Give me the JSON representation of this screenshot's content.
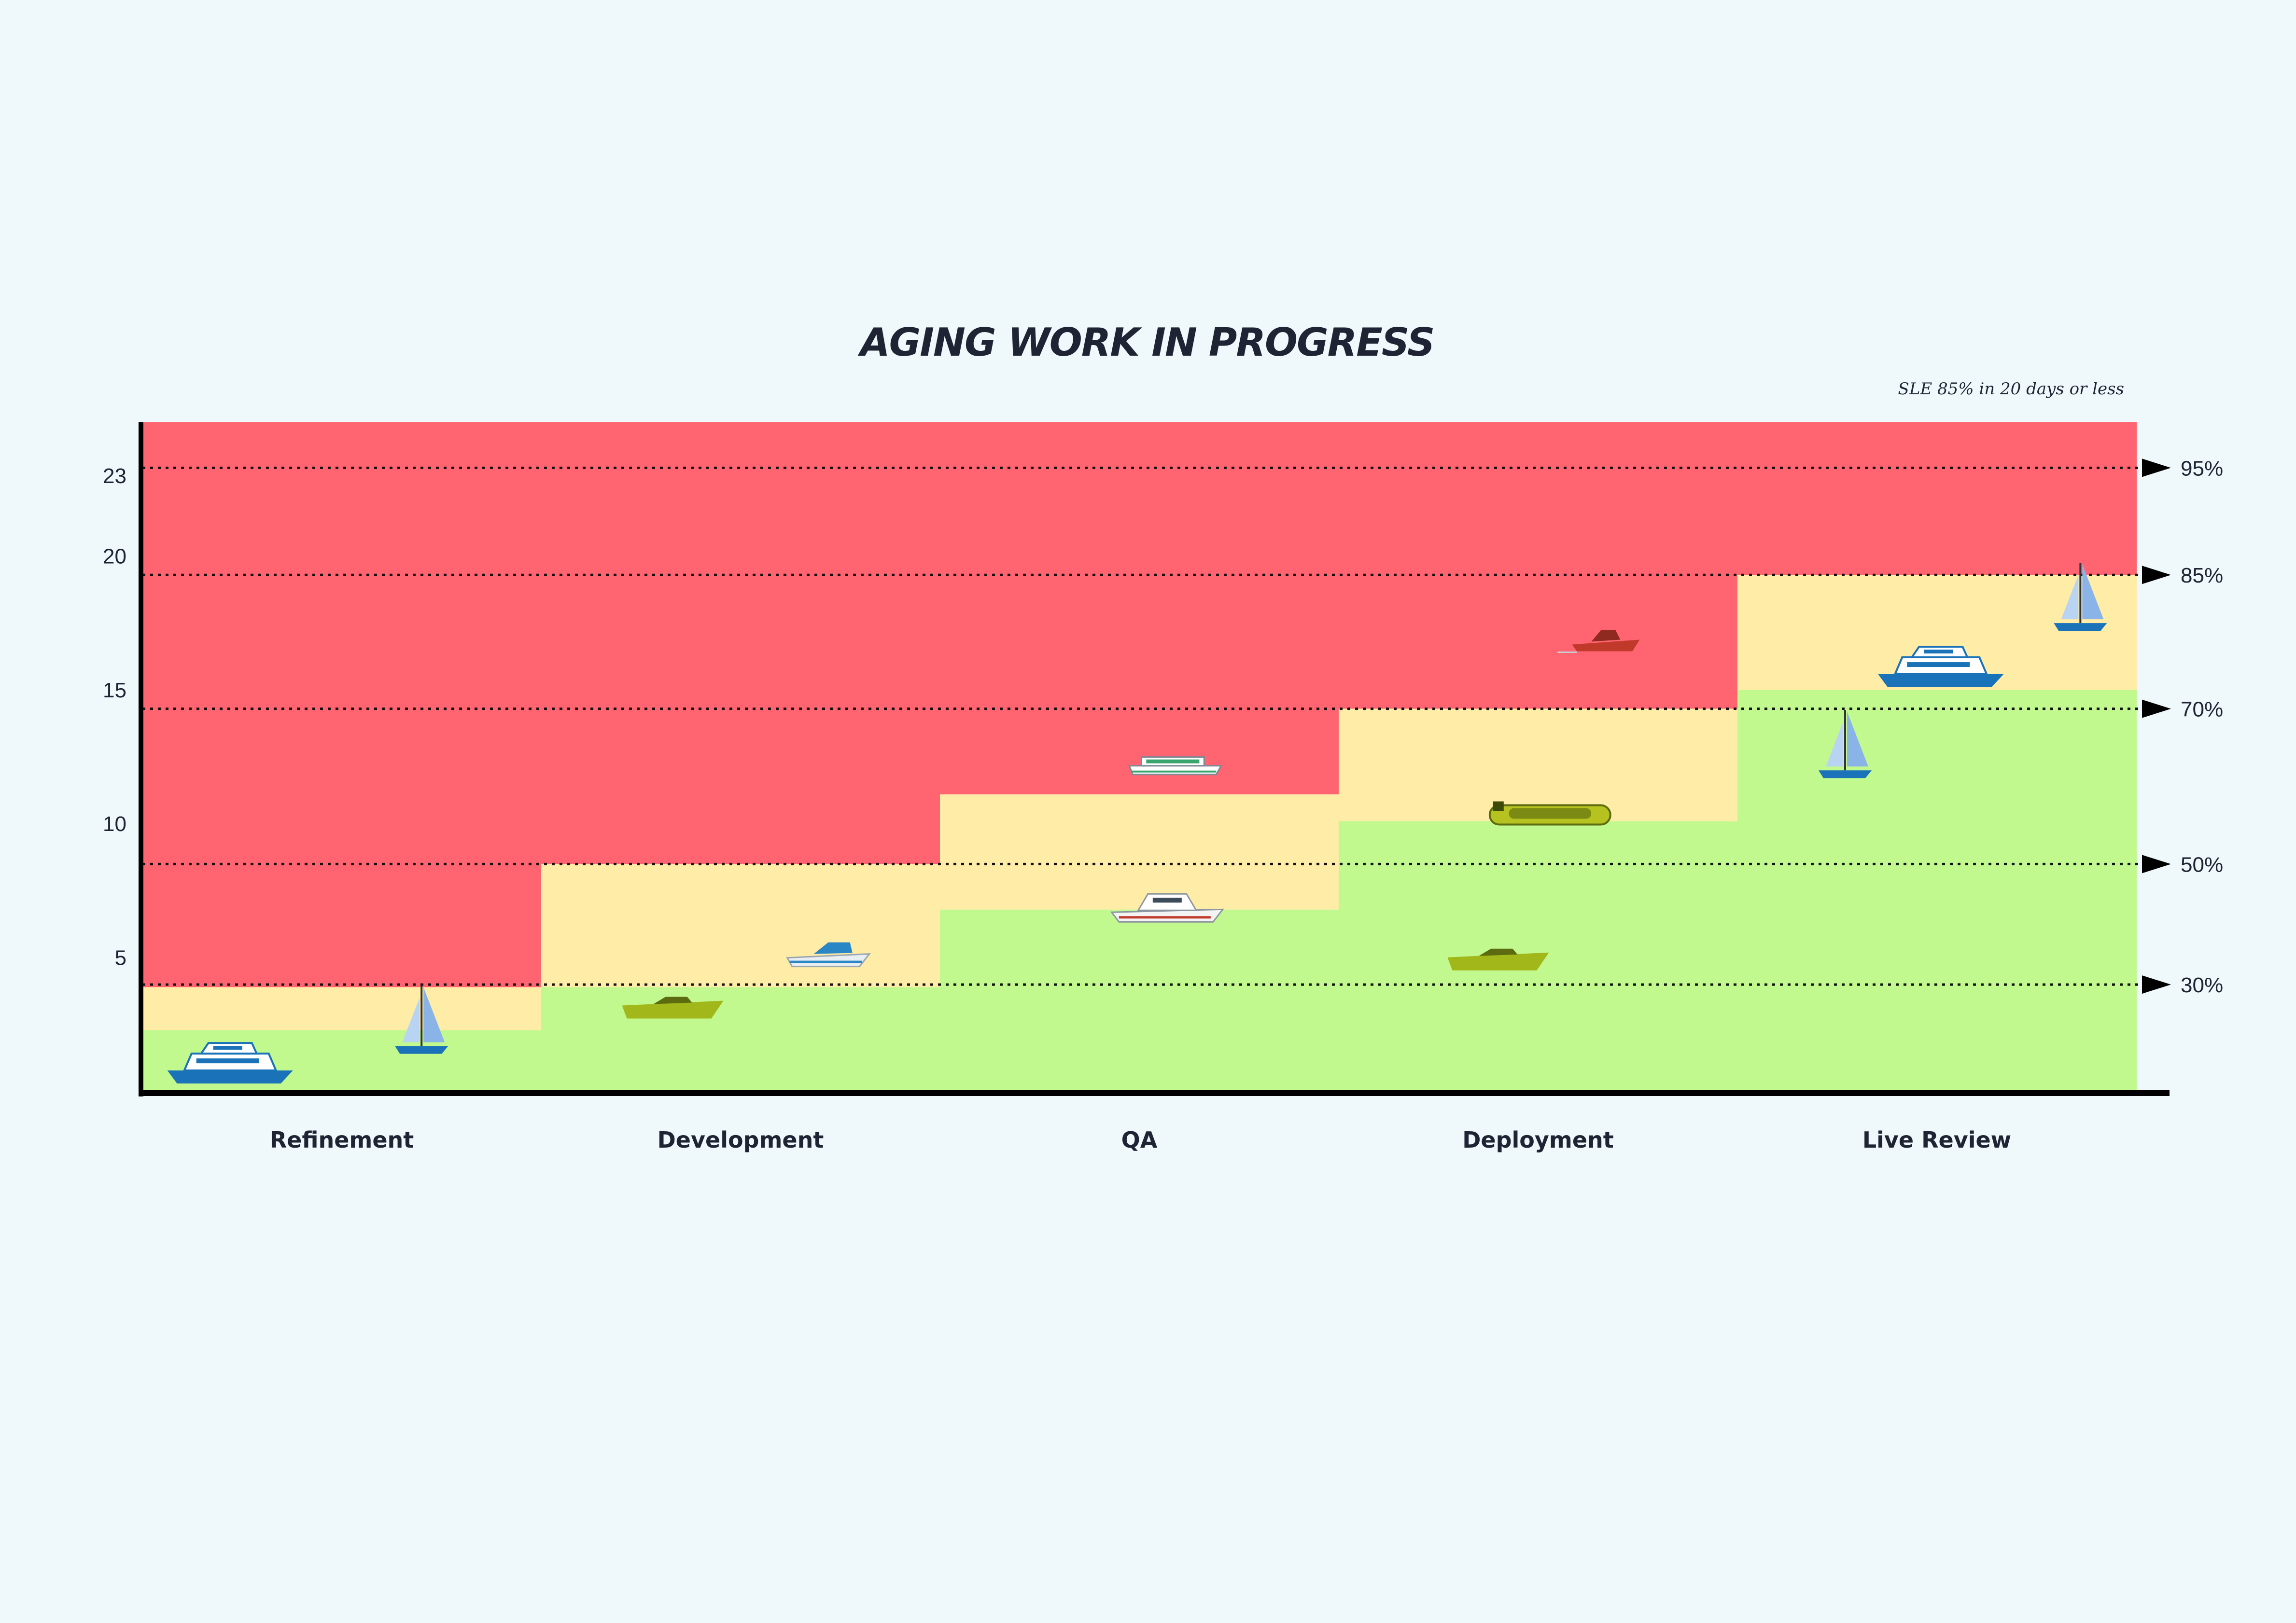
{
  "colors": {
    "background": "#eff8fa",
    "red": "#ff6470",
    "yellow": "#ffeca6",
    "green": "#c2f98f",
    "axis": "#000000",
    "text": "#1e2433"
  },
  "chart_data": {
    "type": "aging-wip",
    "title": "AGING WORK IN PROGRESS",
    "subtitle": "SLE 85% in 20 days or less",
    "categories": [
      "Refinement",
      "Development",
      "QA",
      "Deployment",
      "Live Review"
    ],
    "ylim": [
      0,
      25
    ],
    "y_ticks": [
      5,
      10,
      15,
      20,
      23
    ],
    "percentile_lines": [
      {
        "value": 4,
        "label": "30%"
      },
      {
        "value": 8.5,
        "label": "50%"
      },
      {
        "value": 14.3,
        "label": "70%"
      },
      {
        "value": 19.3,
        "label": "85%"
      },
      {
        "value": 23.3,
        "label": "95%"
      }
    ],
    "zones": [
      {
        "category": "Refinement",
        "green_top": 2.3,
        "yellow_top": 3.9
      },
      {
        "category": "Development",
        "green_top": 3.9,
        "yellow_top": 8.5
      },
      {
        "category": "QA",
        "green_top": 6.8,
        "yellow_top": 11.1
      },
      {
        "category": "Deployment",
        "green_top": 10.1,
        "yellow_top": 14.3
      },
      {
        "category": "Live Review",
        "green_top": 15.0,
        "yellow_top": 19.3
      }
    ],
    "items": [
      {
        "category": "Refinement",
        "pos": 0.22,
        "age": 0.7,
        "icon": "yacht-icon"
      },
      {
        "category": "Refinement",
        "pos": 0.7,
        "age": 1.7,
        "icon": "sailboat-icon"
      },
      {
        "category": "Development",
        "pos": 0.33,
        "age": 3.0,
        "icon": "speedboat-icon"
      },
      {
        "category": "Development",
        "pos": 0.72,
        "age": 5.0,
        "icon": "motorboat-icon"
      },
      {
        "category": "QA",
        "pos": 0.57,
        "age": 6.7,
        "icon": "cruiser-icon"
      },
      {
        "category": "QA",
        "pos": 0.59,
        "age": 12.1,
        "icon": "ferry-icon"
      },
      {
        "category": "Deployment",
        "pos": 0.4,
        "age": 4.8,
        "icon": "speedboat-icon"
      },
      {
        "category": "Deployment",
        "pos": 0.53,
        "age": 10.3,
        "icon": "dinghy-icon"
      },
      {
        "category": "Deployment",
        "pos": 0.67,
        "age": 16.7,
        "icon": "jetski-icon"
      },
      {
        "category": "Live Review",
        "pos": 0.27,
        "age": 12.0,
        "icon": "sailboat-icon"
      },
      {
        "category": "Live Review",
        "pos": 0.51,
        "age": 15.5,
        "icon": "yacht-icon"
      },
      {
        "category": "Live Review",
        "pos": 0.86,
        "age": 17.5,
        "icon": "sailboat-icon"
      }
    ]
  }
}
